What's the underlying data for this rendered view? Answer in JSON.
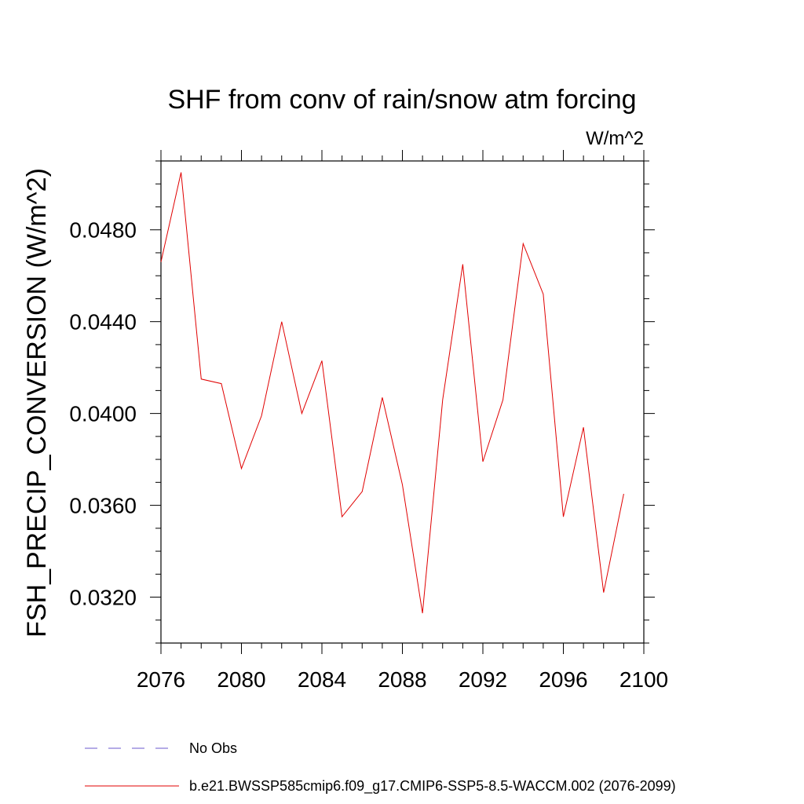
{
  "chart_data": {
    "type": "line",
    "title": "SHF from conv of rain/snow atm forcing",
    "units": "W/m^2",
    "xlabel": "",
    "ylabel": "FSH_PRECIP_CONVERSION  (W/m^2)",
    "xlim": [
      2076,
      2100
    ],
    "ylim": [
      0.03,
      0.051
    ],
    "xticks": [
      "2076",
      "2080",
      "2084",
      "2088",
      "2092",
      "2096",
      "2100"
    ],
    "yticks": [
      "0.0320",
      "0.0360",
      "0.0400",
      "0.0440",
      "0.0480"
    ],
    "grid": false,
    "legend_position": "bottom",
    "series": [
      {
        "name": "b.e21.BWSSP585cmip6.f09_g17.CMIP6-SSP5-8.5-WACCM.002 (2076-2099)",
        "color": "#e00000",
        "style": "solid",
        "x": [
          2076,
          2077,
          2078,
          2079,
          2080,
          2081,
          2082,
          2083,
          2084,
          2085,
          2086,
          2087,
          2088,
          2089,
          2090,
          2091,
          2092,
          2093,
          2094,
          2095,
          2096,
          2097,
          2098,
          2099
        ],
        "y": [
          0.0466,
          0.0505,
          0.0415,
          0.0413,
          0.0376,
          0.0399,
          0.044,
          0.04,
          0.0423,
          0.0355,
          0.0366,
          0.0407,
          0.0369,
          0.0313,
          0.0406,
          0.0465,
          0.0379,
          0.0406,
          0.0474,
          0.0452,
          0.0355,
          0.0394,
          0.0322,
          0.0365
        ]
      }
    ],
    "legend": [
      {
        "label": "No Obs",
        "color": "#6a5acd",
        "style": "dashed"
      },
      {
        "label": "b.e21.BWSSP585cmip6.f09_g17.CMIP6-SSP5-8.5-WACCM.002 (2076-2099)",
        "color": "#e00000",
        "style": "solid"
      }
    ]
  }
}
